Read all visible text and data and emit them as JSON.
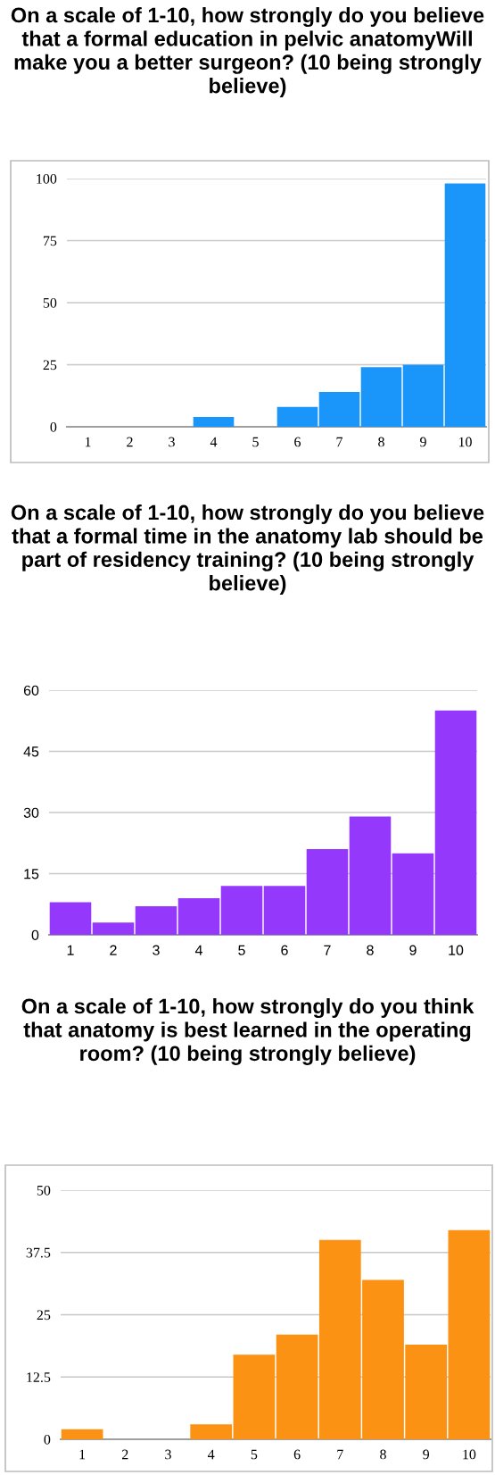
{
  "chart_data": [
    {
      "type": "bar",
      "title": "On a scale of 1-10, how strongly do you believe that a formal education in pelvic anatomyWill make you a better surgeon? (10 being strongly believe)",
      "categories": [
        "1",
        "2",
        "3",
        "4",
        "5",
        "6",
        "7",
        "8",
        "9",
        "10"
      ],
      "values": [
        0,
        0,
        0,
        4,
        0,
        8,
        14,
        24,
        25,
        98
      ],
      "color": "#1a96fa",
      "ylim": [
        0,
        100
      ],
      "yticks": [
        0,
        25,
        50,
        75,
        100
      ],
      "grid": "y"
    },
    {
      "type": "bar",
      "title": "On a scale of 1-10, how strongly do you believe that a formal time in the anatomy lab should be part of residency training? (10 being strongly believe)",
      "categories": [
        "1",
        "2",
        "3",
        "4",
        "5",
        "6",
        "7",
        "8",
        "9",
        "10"
      ],
      "values": [
        8,
        3,
        7,
        9,
        12,
        12,
        21,
        29,
        20,
        55
      ],
      "color": "#9438fb",
      "ylim": [
        0,
        60
      ],
      "yticks": [
        0,
        15,
        30,
        45,
        60
      ],
      "grid": "y"
    },
    {
      "type": "bar",
      "title": "On a scale of 1-10, how strongly do you think that anatomy is best learned in the operating room? (10 being strongly believe)",
      "categories": [
        "1",
        "2",
        "3",
        "4",
        "5",
        "6",
        "7",
        "8",
        "9",
        "10"
      ],
      "values": [
        2,
        0,
        0,
        3,
        17,
        21,
        40,
        32,
        19,
        42
      ],
      "color": "#fb9213",
      "ylim": [
        0,
        50
      ],
      "yticks": [
        0,
        12.5,
        25,
        37.5,
        50
      ],
      "grid": "y"
    }
  ]
}
